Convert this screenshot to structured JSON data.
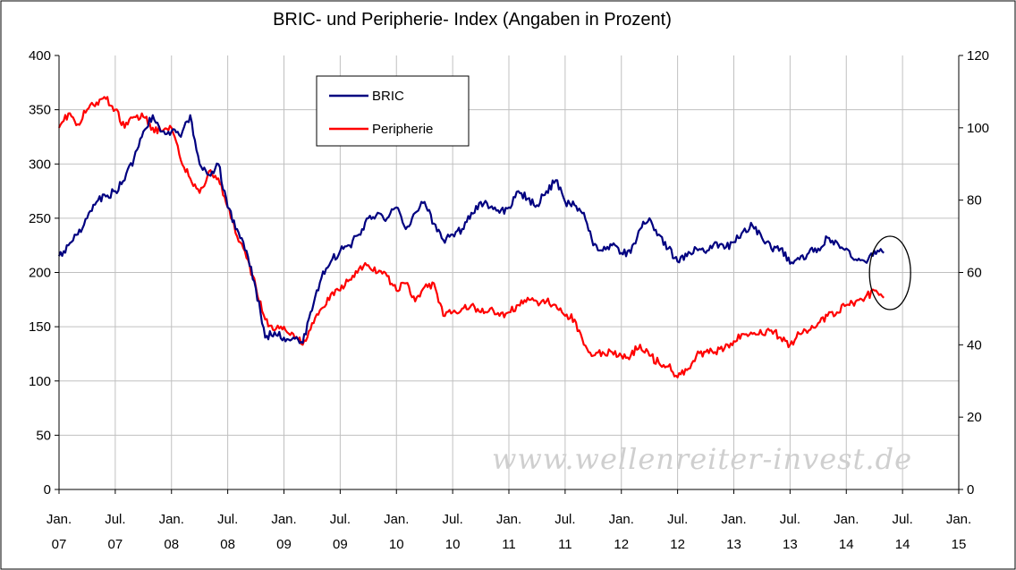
{
  "chart_data": {
    "type": "line",
    "title": "BRIC- und Peripherie- Index (Angaben in Prozent)",
    "xlabel": "",
    "ylabel": "",
    "y_left": {
      "min": 0,
      "max": 400,
      "ticks": [
        "0",
        "50",
        "100",
        "150",
        "200",
        "250",
        "300",
        "350",
        "400"
      ]
    },
    "y_right": {
      "min": 0,
      "max": 120,
      "ticks": [
        "0",
        "20",
        "40",
        "60",
        "80",
        "100",
        "120"
      ]
    },
    "x_ticks": [
      {
        "month": "Jan.",
        "year": "07"
      },
      {
        "month": "Jul.",
        "year": "07"
      },
      {
        "month": "Jan.",
        "year": "08"
      },
      {
        "month": "Jul.",
        "year": "08"
      },
      {
        "month": "Jan.",
        "year": "09"
      },
      {
        "month": "Jul.",
        "year": "09"
      },
      {
        "month": "Jan.",
        "year": "10"
      },
      {
        "month": "Jul.",
        "year": "10"
      },
      {
        "month": "Jan.",
        "year": "11"
      },
      {
        "month": "Jul.",
        "year": "11"
      },
      {
        "month": "Jan.",
        "year": "12"
      },
      {
        "month": "Jul.",
        "year": "12"
      },
      {
        "month": "Jan.",
        "year": "13"
      },
      {
        "month": "Jul.",
        "year": "13"
      },
      {
        "month": "Jan.",
        "year": "14"
      },
      {
        "month": "Jul.",
        "year": "14"
      },
      {
        "month": "Jan.",
        "year": "15"
      }
    ],
    "x_range": [
      "2007-01",
      "2015-01"
    ],
    "grid": true,
    "legend_position": "top-center",
    "series": [
      {
        "name": "BRIC",
        "color": "#000080",
        "axis": "left",
        "x": [
          "2007-01",
          "2007-02",
          "2007-03",
          "2007-04",
          "2007-05",
          "2007-06",
          "2007-07",
          "2007-08",
          "2007-09",
          "2007-10",
          "2007-11",
          "2007-12",
          "2008-01",
          "2008-02",
          "2008-03",
          "2008-04",
          "2008-05",
          "2008-06",
          "2008-07",
          "2008-08",
          "2008-09",
          "2008-10",
          "2008-11",
          "2008-12",
          "2009-01",
          "2009-02",
          "2009-03",
          "2009-04",
          "2009-05",
          "2009-06",
          "2009-07",
          "2009-08",
          "2009-09",
          "2009-10",
          "2009-11",
          "2009-12",
          "2010-01",
          "2010-02",
          "2010-03",
          "2010-04",
          "2010-05",
          "2010-06",
          "2010-07",
          "2010-08",
          "2010-09",
          "2010-10",
          "2010-11",
          "2010-12",
          "2011-01",
          "2011-02",
          "2011-03",
          "2011-04",
          "2011-05",
          "2011-06",
          "2011-07",
          "2011-08",
          "2011-09",
          "2011-10",
          "2011-11",
          "2011-12",
          "2012-01",
          "2012-02",
          "2012-03",
          "2012-04",
          "2012-05",
          "2012-06",
          "2012-07",
          "2012-08",
          "2012-09",
          "2012-10",
          "2012-11",
          "2012-12",
          "2013-01",
          "2013-02",
          "2013-03",
          "2013-04",
          "2013-05",
          "2013-06",
          "2013-07",
          "2013-08",
          "2013-09",
          "2013-10",
          "2013-11",
          "2013-12",
          "2014-01",
          "2014-02",
          "2014-03",
          "2014-04",
          "2014-05"
        ],
        "values": [
          215,
          225,
          235,
          250,
          265,
          270,
          275,
          285,
          305,
          330,
          345,
          330,
          330,
          325,
          345,
          300,
          290,
          300,
          260,
          240,
          220,
          185,
          140,
          145,
          140,
          140,
          135,
          165,
          195,
          210,
          220,
          225,
          235,
          250,
          255,
          250,
          260,
          240,
          255,
          265,
          245,
          230,
          235,
          240,
          255,
          265,
          260,
          255,
          260,
          275,
          268,
          262,
          275,
          285,
          265,
          262,
          255,
          225,
          220,
          225,
          218,
          218,
          240,
          250,
          235,
          222,
          210,
          215,
          222,
          218,
          228,
          222,
          228,
          238,
          243,
          232,
          222,
          222,
          208,
          212,
          218,
          222,
          232,
          228,
          222,
          212,
          210,
          220,
          218
        ]
      },
      {
        "name": "Peripherie",
        "color": "#ff0000",
        "axis": "right",
        "x": [
          "2007-01",
          "2007-02",
          "2007-03",
          "2007-04",
          "2007-05",
          "2007-06",
          "2007-07",
          "2007-08",
          "2007-09",
          "2007-10",
          "2007-11",
          "2007-12",
          "2008-01",
          "2008-02",
          "2008-03",
          "2008-04",
          "2008-05",
          "2008-06",
          "2008-07",
          "2008-08",
          "2008-09",
          "2008-10",
          "2008-11",
          "2008-12",
          "2009-01",
          "2009-02",
          "2009-03",
          "2009-04",
          "2009-05",
          "2009-06",
          "2009-07",
          "2009-08",
          "2009-09",
          "2009-10",
          "2009-11",
          "2009-12",
          "2010-01",
          "2010-02",
          "2010-03",
          "2010-04",
          "2010-05",
          "2010-06",
          "2010-07",
          "2010-08",
          "2010-09",
          "2010-10",
          "2010-11",
          "2010-12",
          "2011-01",
          "2011-02",
          "2011-03",
          "2011-04",
          "2011-05",
          "2011-06",
          "2011-07",
          "2011-08",
          "2011-09",
          "2011-10",
          "2011-11",
          "2011-12",
          "2012-01",
          "2012-02",
          "2012-03",
          "2012-04",
          "2012-05",
          "2012-06",
          "2012-07",
          "2012-08",
          "2012-09",
          "2012-10",
          "2012-11",
          "2012-12",
          "2013-01",
          "2013-02",
          "2013-03",
          "2013-04",
          "2013-05",
          "2013-06",
          "2013-07",
          "2013-08",
          "2013-09",
          "2013-10",
          "2013-11",
          "2013-12",
          "2014-01",
          "2014-02",
          "2014-03",
          "2014-04",
          "2014-05"
        ],
        "values": [
          100,
          104,
          101,
          105,
          107,
          108,
          105,
          100,
          103,
          103,
          100,
          99,
          100,
          91,
          86,
          82,
          88,
          86,
          78,
          70,
          64,
          56,
          47,
          44,
          45,
          43,
          40,
          46,
          50,
          54,
          55,
          58,
          61,
          62,
          60,
          59,
          55,
          57,
          52,
          56,
          57,
          48,
          49,
          50,
          51,
          49,
          50,
          48,
          49,
          51,
          53,
          52,
          52,
          51,
          48,
          47,
          40,
          37,
          38,
          38,
          37,
          37,
          40,
          37,
          35,
          34,
          31,
          33,
          37,
          38,
          38,
          39,
          41,
          43,
          43,
          43,
          44,
          42,
          40,
          43,
          44,
          46,
          48,
          49,
          51,
          52,
          53,
          55,
          53
        ]
      }
    ],
    "annotations": [
      {
        "type": "ellipse",
        "label": "",
        "x": "2014-05"
      }
    ],
    "watermark": "www.wellenreiter-invest.de",
    "series_colors": {
      "BRIC": "#000080",
      "Peripherie": "#ff0000"
    }
  }
}
